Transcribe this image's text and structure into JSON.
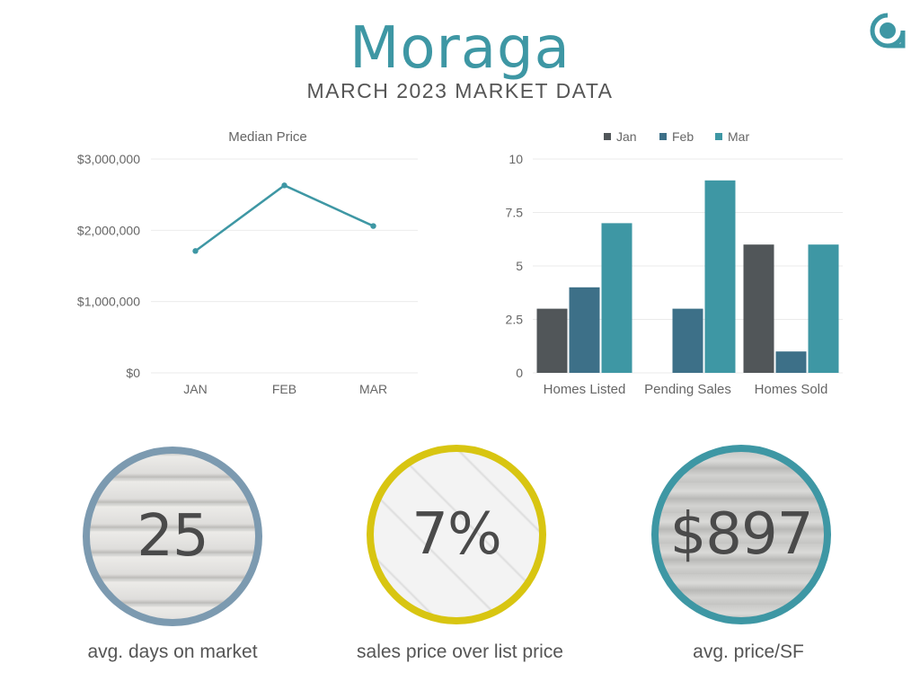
{
  "header": {
    "title": "Moraga",
    "subtitle": "MARCH 2023 MARKET DATA",
    "logo_icon": "agent-logo-icon"
  },
  "colors": {
    "teal": "#3e97a4",
    "dark_gray": "#515659",
    "slate_blue": "#3d7088",
    "circle1": "#7c9ab0",
    "circle2": "#d8c511",
    "circle3": "#3e97a4"
  },
  "chart_data": [
    {
      "type": "line",
      "title": "Median Price",
      "categories": [
        "JAN",
        "FEB",
        "MAR"
      ],
      "series": [
        {
          "values": [
            1710000,
            2630000,
            2060000
          ]
        }
      ],
      "yticks": [
        "$0",
        "$1,000,000",
        "$2,000,000",
        "$3,000,000"
      ],
      "ylim": [
        0,
        3000000
      ],
      "grid": true
    },
    {
      "type": "bar",
      "categories": [
        "Homes Listed",
        "Pending Sales",
        "Homes Sold"
      ],
      "series": [
        {
          "name": "Jan",
          "values": [
            3,
            0,
            6
          ]
        },
        {
          "name": "Feb",
          "values": [
            4,
            3,
            1
          ]
        },
        {
          "name": "Mar",
          "values": [
            7,
            9,
            6
          ]
        }
      ],
      "yticks": [
        "0",
        "2.5",
        "5",
        "7.5",
        "10"
      ],
      "ylim": [
        0,
        10
      ],
      "legend": "top",
      "grid": true
    }
  ],
  "stats": [
    {
      "value": "25",
      "label": "avg. days on market"
    },
    {
      "value": "7%",
      "label": "sales price over list price"
    },
    {
      "value": "$897",
      "label": "avg. price/SF"
    }
  ]
}
